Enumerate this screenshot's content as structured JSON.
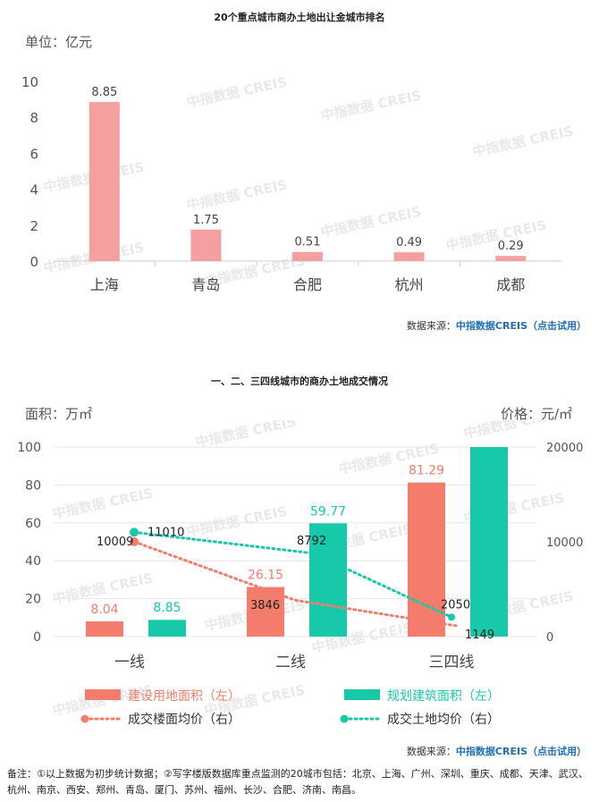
{
  "chart1": {
    "title": "20个重点城市商办土地出让金城市排名",
    "unit_label": "单位：亿元",
    "watermark": "中指数据 CREIS",
    "source_prefix": "数据来源：",
    "source_brand": "中指数据CREIS（点击试用）"
  },
  "chart2": {
    "title": "一、二、三四线城市的商办土地成交情况",
    "left_unit": "面积：万㎡",
    "right_unit": "价格：元/㎡",
    "watermark": "中指数据 CREIS",
    "source_prefix": "数据来源：",
    "source_brand": "中指数据CREIS（点击试用）"
  },
  "footnote": "备注：①以上数据为初步统计数据；②写字楼版数据库重点监测的20城市包括：北京、上海、广州、深圳、重庆、成都、天津、武汉、杭州、南京、西安、郑州、青岛、厦门、苏州、福州、长沙、合肥、济南、南昌。",
  "colors": {
    "bar1": "#f4a0a0",
    "salmon": "#f47c6c",
    "teal": "#17c9a9",
    "grid": "#e6e6e6"
  },
  "chart_data": [
    {
      "type": "bar",
      "title": "20个重点城市商办土地出让金城市排名",
      "ylabel": "单位：亿元",
      "categories": [
        "上海",
        "青岛",
        "合肥",
        "杭州",
        "成都"
      ],
      "values": [
        8.85,
        1.75,
        0.51,
        0.49,
        0.29
      ],
      "value_labels": [
        "8.85",
        "1.75",
        "0.51",
        "0.49",
        "0.29"
      ],
      "ylim": [
        0,
        10
      ],
      "yticks": [
        0,
        2,
        4,
        6,
        8,
        10
      ],
      "grid": false
    },
    {
      "type": "bar",
      "title": "一、二、三四线城市的商办土地成交情况",
      "ylabel": "面积：万㎡",
      "y2label": "价格：元/㎡",
      "categories": [
        "一线",
        "二线",
        "三四线"
      ],
      "ylim": [
        0,
        100
      ],
      "yticks": [
        0,
        20,
        40,
        60,
        80,
        100
      ],
      "y2lim": [
        0,
        20000
      ],
      "y2ticks": [
        0,
        10000,
        20000
      ],
      "legend_position": "bottom",
      "series": [
        {
          "name": "建设用地面积（左）",
          "kind": "bar",
          "axis": "left",
          "values": [
            8.04,
            26.15,
            81.29
          ],
          "labels": [
            "8.04",
            "26.15",
            "81.29"
          ]
        },
        {
          "name": "规划建筑面积（左）",
          "kind": "bar",
          "axis": "left",
          "values": [
            8.85,
            59.77,
            100
          ],
          "labels": [
            "8.85",
            "59.77",
            ""
          ]
        },
        {
          "name": "成交楼面均价（右）",
          "kind": "dotted-line",
          "axis": "right",
          "values": [
            10009,
            3846,
            1149
          ],
          "labels": [
            "10009",
            "3846",
            "1149"
          ]
        },
        {
          "name": "成交土地均价（右）",
          "kind": "dotted-line",
          "axis": "right",
          "values": [
            11010,
            8792,
            2050
          ],
          "labels": [
            "11010",
            "8792",
            "2050"
          ]
        }
      ]
    }
  ]
}
